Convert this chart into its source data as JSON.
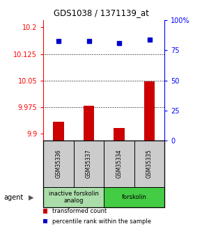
{
  "title": "GDS1038 / 1371139_at",
  "samples": [
    "GSM35336",
    "GSM35337",
    "GSM35334",
    "GSM35335"
  ],
  "bar_values": [
    9.932,
    9.978,
    9.916,
    10.047
  ],
  "percentile_values": [
    83,
    83,
    81,
    84
  ],
  "ylim_left": [
    9.88,
    10.22
  ],
  "ylim_right": [
    0,
    100
  ],
  "yticks_left": [
    9.9,
    9.975,
    10.05,
    10.125,
    10.2
  ],
  "yticks_right": [
    0,
    25,
    50,
    75,
    100
  ],
  "ytick_labels_left": [
    "9.9",
    "9.975",
    "10.05",
    "10.125",
    "10.2"
  ],
  "ytick_labels_right": [
    "0",
    "25",
    "50",
    "75",
    "100%"
  ],
  "hlines": [
    9.975,
    10.05,
    10.125
  ],
  "bar_color": "#cc0000",
  "dot_color": "#0000cc",
  "agent_groups": [
    {
      "label": "inactive forskolin\nanalog",
      "samples": [
        0,
        1
      ],
      "color": "#aaddaa"
    },
    {
      "label": "forskolin",
      "samples": [
        2,
        3
      ],
      "color": "#44cc44"
    }
  ],
  "legend_items": [
    {
      "color": "#cc0000",
      "label": "transformed count"
    },
    {
      "color": "#0000cc",
      "label": "percentile rank within the sample"
    }
  ],
  "bar_width": 0.35,
  "title_fontsize": 8.5,
  "tick_fontsize": 7,
  "sample_fontsize": 5.5,
  "agent_fontsize": 6,
  "legend_fontsize": 6
}
